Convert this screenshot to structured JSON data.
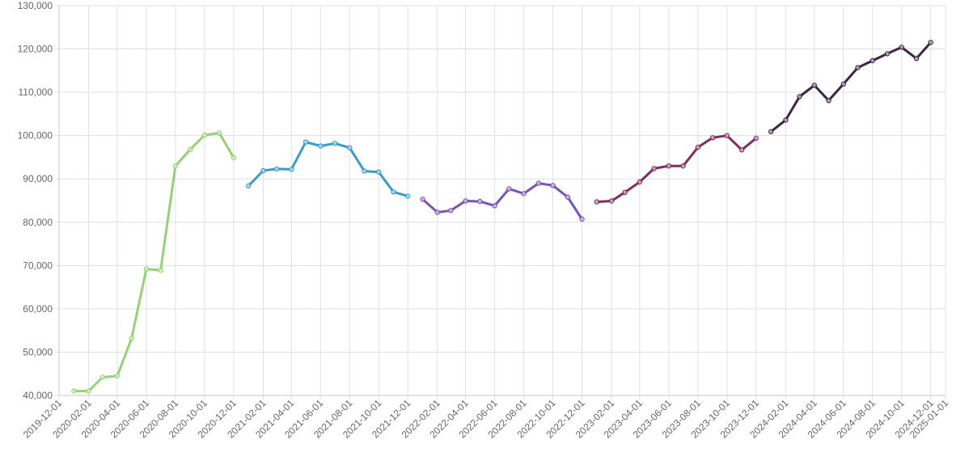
{
  "chart_data": {
    "type": "line",
    "title": "",
    "xlabel": "",
    "ylabel": "",
    "grid": true,
    "legend": "none",
    "xlim": [
      "2019-12-01",
      "2025-01-01"
    ],
    "ylim": [
      40000,
      130000
    ],
    "y_ticks": [
      "40,000",
      "50,000",
      "60,000",
      "70,000",
      "80,000",
      "90,000",
      "100,000",
      "110,000",
      "120,000",
      "130,000"
    ],
    "x_ticks": [
      "2019-12-01",
      "2020-02-01",
      "2020-04-01",
      "2020-06-01",
      "2020-08-01",
      "2020-10-01",
      "2020-12-01",
      "2021-02-01",
      "2021-04-01",
      "2021-06-01",
      "2021-08-01",
      "2021-10-01",
      "2021-12-01",
      "2022-02-01",
      "2022-04-01",
      "2022-06-01",
      "2022-08-01",
      "2022-10-01",
      "2022-12-01",
      "2023-02-01",
      "2023-04-01",
      "2023-06-01",
      "2023-08-01",
      "2023-10-01",
      "2023-12-01",
      "2024-02-01",
      "2024-04-01",
      "2024-06-01",
      "2024-08-01",
      "2024-10-01",
      "2024-12-01",
      "2025-01-01"
    ],
    "series": [
      {
        "color": "#96d275",
        "x": [
          "2020-01-01",
          "2020-02-01",
          "2020-03-01",
          "2020-04-01",
          "2020-05-01",
          "2020-06-01",
          "2020-07-01",
          "2020-08-01",
          "2020-09-01",
          "2020-10-01",
          "2020-11-01",
          "2020-12-01"
        ],
        "y": [
          41000,
          41000,
          44200,
          44500,
          53200,
          69200,
          68900,
          93000,
          96800,
          100100,
          100600,
          94900
        ]
      },
      {
        "color": "#3b9ccb",
        "x": [
          "2021-01-01",
          "2021-02-01",
          "2021-03-01",
          "2021-04-01",
          "2021-05-01",
          "2021-06-01",
          "2021-07-01",
          "2021-08-01",
          "2021-09-01",
          "2021-10-01",
          "2021-11-01",
          "2021-12-01"
        ],
        "y": [
          88400,
          91900,
          92300,
          92200,
          98500,
          97600,
          98200,
          97200,
          91800,
          91600,
          87000,
          86000
        ]
      },
      {
        "color": "#7b52b5",
        "x": [
          "2022-01-01",
          "2022-02-01",
          "2022-03-01",
          "2022-04-01",
          "2022-05-01",
          "2022-06-01",
          "2022-07-01",
          "2022-08-01",
          "2022-09-01",
          "2022-10-01",
          "2022-11-01",
          "2022-12-01"
        ],
        "y": [
          85300,
          82300,
          82700,
          84900,
          84800,
          83800,
          87700,
          86600,
          89000,
          88500,
          85800,
          80700
        ]
      },
      {
        "color": "#7d2e5a",
        "x": [
          "2023-01-01",
          "2023-02-01",
          "2023-03-01",
          "2023-04-01",
          "2023-05-01",
          "2023-06-01",
          "2023-07-01",
          "2023-08-01",
          "2023-09-01",
          "2023-10-01",
          "2023-11-01",
          "2023-12-01"
        ],
        "y": [
          84700,
          84900,
          86900,
          89300,
          92400,
          93000,
          93000,
          97300,
          99500,
          100000,
          96700,
          99400
        ]
      },
      {
        "color": "#3e2547",
        "x": [
          "2024-01-01",
          "2024-02-01",
          "2024-03-01",
          "2024-04-01",
          "2024-05-01",
          "2024-06-01",
          "2024-07-01",
          "2024-08-01",
          "2024-09-01",
          "2024-10-01",
          "2024-11-01",
          "2024-12-01"
        ],
        "y": [
          100900,
          103600,
          109000,
          111600,
          108100,
          111900,
          115700,
          117300,
          118900,
          120400,
          117800,
          121500
        ]
      }
    ]
  }
}
